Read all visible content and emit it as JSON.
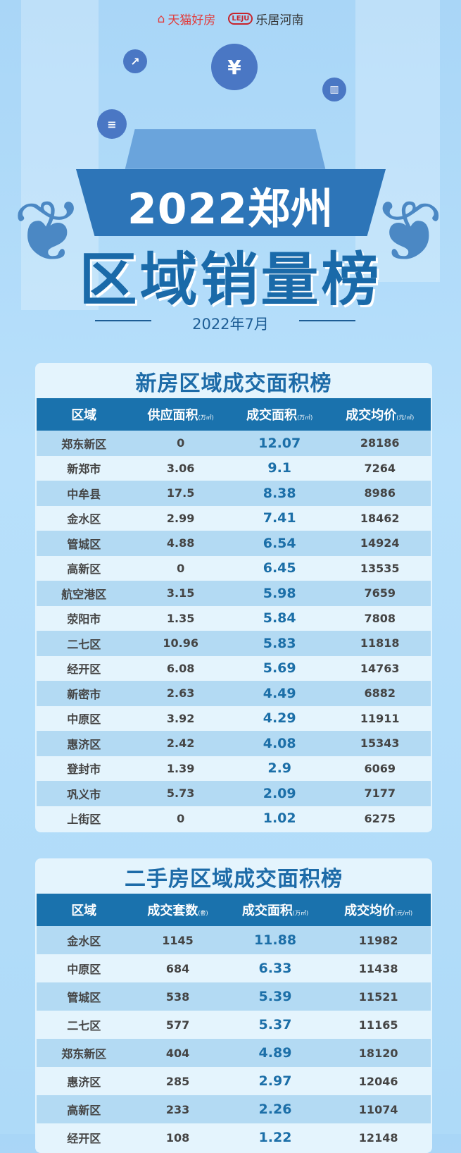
{
  "logos": {
    "tmall": "天猫好房",
    "leju_badge": "LEJU",
    "leju": "乐居河南"
  },
  "hero": {
    "title_line1": "2022郑州",
    "title_line2": "区域销量榜",
    "date": "2022年7月"
  },
  "new_house": {
    "title": "新房区域成交面积榜",
    "headers": [
      {
        "label": "区域",
        "unit": ""
      },
      {
        "label": "供应面积",
        "unit": "(万㎡)"
      },
      {
        "label": "成交面积",
        "unit": "(万㎡)"
      },
      {
        "label": "成交均价",
        "unit": "(元/㎡)"
      }
    ],
    "rows": [
      [
        "郑东新区",
        "0",
        "12.07",
        "28186"
      ],
      [
        "新郑市",
        "3.06",
        "9.1",
        "7264"
      ],
      [
        "中牟县",
        "17.5",
        "8.38",
        "8986"
      ],
      [
        "金水区",
        "2.99",
        "7.41",
        "18462"
      ],
      [
        "管城区",
        "4.88",
        "6.54",
        "14924"
      ],
      [
        "高新区",
        "0",
        "6.45",
        "13535"
      ],
      [
        "航空港区",
        "3.15",
        "5.98",
        "7659"
      ],
      [
        "荥阳市",
        "1.35",
        "5.84",
        "7808"
      ],
      [
        "二七区",
        "10.96",
        "5.83",
        "11818"
      ],
      [
        "经开区",
        "6.08",
        "5.69",
        "14763"
      ],
      [
        "新密市",
        "2.63",
        "4.49",
        "6882"
      ],
      [
        "中原区",
        "3.92",
        "4.29",
        "11911"
      ],
      [
        "惠济区",
        "2.42",
        "4.08",
        "15343"
      ],
      [
        "登封市",
        "1.39",
        "2.9",
        "6069"
      ],
      [
        "巩义市",
        "5.73",
        "2.09",
        "7177"
      ],
      [
        "上街区",
        "0",
        "1.02",
        "6275"
      ]
    ]
  },
  "second_house": {
    "title": "二手房区域成交面积榜",
    "headers": [
      {
        "label": "区域",
        "unit": ""
      },
      {
        "label": "成交套数",
        "unit": "(套)"
      },
      {
        "label": "成交面积",
        "unit": "(万㎡)"
      },
      {
        "label": "成交均价",
        "unit": "(元/㎡)"
      }
    ],
    "rows": [
      [
        "金水区",
        "1145",
        "11.88",
        "11982"
      ],
      [
        "中原区",
        "684",
        "6.33",
        "11438"
      ],
      [
        "管城区",
        "538",
        "5.39",
        "11521"
      ],
      [
        "二七区",
        "577",
        "5.37",
        "11165"
      ],
      [
        "郑东新区",
        "404",
        "4.89",
        "18120"
      ],
      [
        "惠济区",
        "285",
        "2.97",
        "12046"
      ],
      [
        "高新区",
        "233",
        "2.26",
        "11074"
      ],
      [
        "经开区",
        "108",
        "1.22",
        "12148"
      ]
    ]
  },
  "colors": {
    "header_bg": "#1a72ad",
    "title": "#1d6ba8",
    "stripe": "#b3daf3",
    "highlight": "#1c6fa8"
  }
}
